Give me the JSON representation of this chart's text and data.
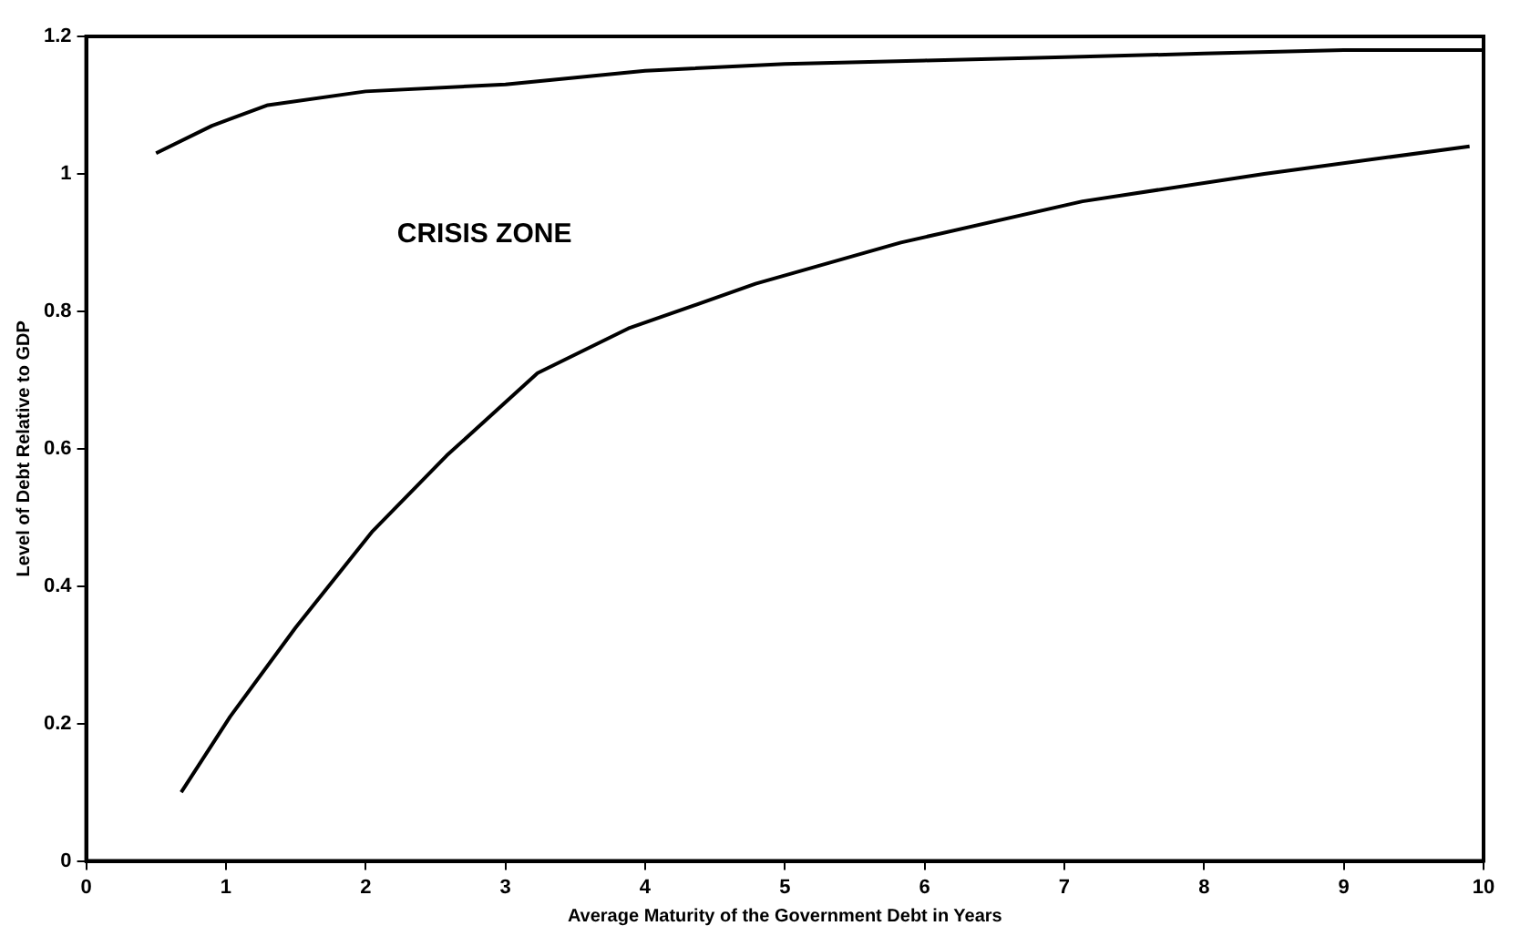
{
  "chart_data": {
    "type": "line",
    "xlabel": "Average Maturity of the Government Debt in Years",
    "ylabel": "Level of Debt Relative to GDP",
    "annotations": [
      "CRISIS ZONE"
    ],
    "xlim": [
      0,
      10
    ],
    "xticks": [
      0,
      1,
      2,
      3,
      4,
      5,
      6,
      7,
      8,
      9,
      10
    ],
    "ylim": [
      0,
      1.2
    ],
    "yticks": [
      0,
      0.2,
      0.4,
      0.6,
      0.8,
      1,
      1.2
    ],
    "grid": false,
    "legend": false,
    "marker": "none",
    "line_style": "solid",
    "series": [
      {
        "color": "#000000",
        "x": [
          0.5,
          0.9,
          1.3,
          2,
          3,
          4,
          5,
          6,
          7,
          8,
          9,
          10
        ],
        "values": [
          1.03,
          1.07,
          1.1,
          1.12,
          1.13,
          1.15,
          1.16,
          1.165,
          1.17,
          1.175,
          1.18,
          1.18
        ]
      },
      {
        "color": "#000000",
        "x": [
          0.68,
          1.03,
          1.5,
          2.05,
          2.58,
          3.23,
          3.88,
          4.79,
          5.83,
          7.13,
          8.43,
          9.9
        ],
        "values": [
          0.1,
          0.21,
          0.34,
          0.48,
          0.59,
          0.71,
          0.775,
          0.84,
          0.9,
          0.96,
          1,
          1.04
        ]
      }
    ]
  }
}
